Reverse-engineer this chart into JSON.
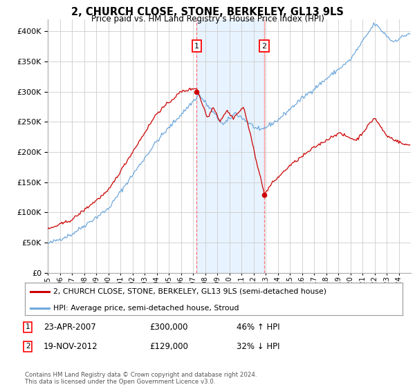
{
  "title": "2, CHURCH CLOSE, STONE, BERKELEY, GL13 9LS",
  "subtitle": "Price paid vs. HM Land Registry's House Price Index (HPI)",
  "legend_line1": "2, CHURCH CLOSE, STONE, BERKELEY, GL13 9LS (semi-detached house)",
  "legend_line2": "HPI: Average price, semi-detached house, Stroud",
  "footnote": "Contains HM Land Registry data © Crown copyright and database right 2024.\nThis data is licensed under the Open Government Licence v3.0.",
  "sale1_date": "23-APR-2007",
  "sale1_price": "£300,000",
  "sale1_hpi": "46% ↑ HPI",
  "sale1_year": 2007.31,
  "sale1_value": 300000,
  "sale2_date": "19-NOV-2012",
  "sale2_price": "£129,000",
  "sale2_hpi": "32% ↓ HPI",
  "sale2_year": 2012.88,
  "sale2_value": 129000,
  "hpi_color": "#6fa8dc",
  "price_color": "#cc0000",
  "grid_color": "#cccccc",
  "background_color": "#ffffff",
  "ylim": [
    0,
    420000
  ],
  "xlim_start": 1995,
  "xlim_end": 2025
}
